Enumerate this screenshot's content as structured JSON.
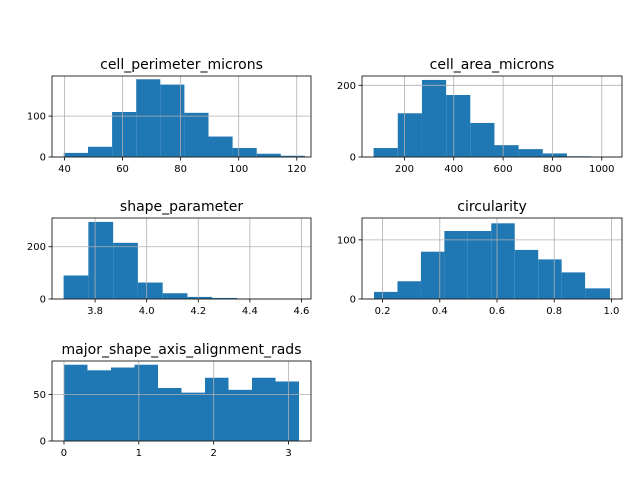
{
  "chart_data": [
    {
      "type": "bar",
      "title": "cell_perimeter_microns",
      "xlabel": "",
      "ylabel": "",
      "xlim": [
        35.7,
        124.9
      ],
      "ylim": [
        0,
        198
      ],
      "bins": [
        {
          "x0": 39.75,
          "x1": 48.1,
          "count": 10
        },
        {
          "x0": 48.1,
          "x1": 56.4,
          "count": 25
        },
        {
          "x0": 56.4,
          "x1": 64.7,
          "count": 110
        },
        {
          "x0": 64.7,
          "x1": 73.0,
          "count": 190
        },
        {
          "x0": 73.0,
          "x1": 81.3,
          "count": 177
        },
        {
          "x0": 81.3,
          "x1": 89.6,
          "count": 108
        },
        {
          "x0": 89.6,
          "x1": 97.9,
          "count": 50
        },
        {
          "x0": 97.9,
          "x1": 106.2,
          "count": 22
        },
        {
          "x0": 106.2,
          "x1": 114.5,
          "count": 8
        },
        {
          "x0": 114.5,
          "x1": 122.8,
          "count": 3
        }
      ],
      "xticks": [
        40,
        60,
        80,
        100,
        120
      ],
      "yticks": [
        0,
        100
      ],
      "grid": true
    },
    {
      "type": "bar",
      "title": "cell_area_microns",
      "xlabel": "",
      "ylabel": "",
      "xlim": [
        28,
        1082
      ],
      "ylim": [
        0,
        226
      ],
      "bins": [
        {
          "x0": 75,
          "x1": 173,
          "count": 25
        },
        {
          "x0": 173,
          "x1": 271,
          "count": 122
        },
        {
          "x0": 271,
          "x1": 369,
          "count": 215
        },
        {
          "x0": 369,
          "x1": 467,
          "count": 173
        },
        {
          "x0": 467,
          "x1": 565,
          "count": 95
        },
        {
          "x0": 565,
          "x1": 663,
          "count": 33
        },
        {
          "x0": 663,
          "x1": 761,
          "count": 22
        },
        {
          "x0": 761,
          "x1": 859,
          "count": 10
        },
        {
          "x0": 859,
          "x1": 957,
          "count": 2
        },
        {
          "x0": 957,
          "x1": 1035,
          "count": 1
        }
      ],
      "xticks": [
        200,
        400,
        600,
        800,
        1000
      ],
      "yticks": [
        0,
        200
      ],
      "grid": true
    },
    {
      "type": "bar",
      "title": "shape_parameter",
      "xlabel": "",
      "ylabel": "",
      "xlim": [
        3.633,
        4.637
      ],
      "ylim": [
        0,
        310
      ],
      "bins": [
        {
          "x0": 3.678,
          "x1": 3.774,
          "count": 90
        },
        {
          "x0": 3.774,
          "x1": 3.87,
          "count": 295
        },
        {
          "x0": 3.87,
          "x1": 3.966,
          "count": 215
        },
        {
          "x0": 3.966,
          "x1": 4.062,
          "count": 63
        },
        {
          "x0": 4.062,
          "x1": 4.158,
          "count": 22
        },
        {
          "x0": 4.158,
          "x1": 4.254,
          "count": 8
        },
        {
          "x0": 4.254,
          "x1": 4.35,
          "count": 4
        },
        {
          "x0": 4.35,
          "x1": 4.446,
          "count": 1
        },
        {
          "x0": 4.446,
          "x1": 4.542,
          "count": 1
        },
        {
          "x0": 4.542,
          "x1": 4.592,
          "count": 1
        }
      ],
      "xticks": [
        3.8,
        4.0,
        4.2,
        4.4,
        4.6
      ],
      "yticks": [
        0,
        200
      ],
      "grid": true
    },
    {
      "type": "bar",
      "title": "circularity",
      "xlabel": "",
      "ylabel": "",
      "xlim": [
        0.128,
        1.037
      ],
      "ylim": [
        0,
        137
      ],
      "bins": [
        {
          "x0": 0.17,
          "x1": 0.252,
          "count": 12
        },
        {
          "x0": 0.252,
          "x1": 0.334,
          "count": 30
        },
        {
          "x0": 0.334,
          "x1": 0.416,
          "count": 80
        },
        {
          "x0": 0.416,
          "x1": 0.498,
          "count": 115
        },
        {
          "x0": 0.498,
          "x1": 0.58,
          "count": 115
        },
        {
          "x0": 0.58,
          "x1": 0.662,
          "count": 128
        },
        {
          "x0": 0.662,
          "x1": 0.744,
          "count": 83
        },
        {
          "x0": 0.744,
          "x1": 0.826,
          "count": 67
        },
        {
          "x0": 0.826,
          "x1": 0.908,
          "count": 45
        },
        {
          "x0": 0.908,
          "x1": 0.995,
          "count": 18
        }
      ],
      "xticks": [
        0.2,
        0.4,
        0.6,
        0.8,
        1.0
      ],
      "yticks": [
        0,
        100
      ],
      "grid": true
    },
    {
      "type": "bar",
      "title": "major_shape_axis_alignment_rads",
      "xlabel": "",
      "ylabel": "",
      "xlim": [
        -0.16,
        3.3
      ],
      "ylim": [
        0,
        86
      ],
      "bins": [
        {
          "x0": 0.0,
          "x1": 0.314,
          "count": 82
        },
        {
          "x0": 0.314,
          "x1": 0.628,
          "count": 76
        },
        {
          "x0": 0.628,
          "x1": 0.942,
          "count": 79
        },
        {
          "x0": 0.942,
          "x1": 1.256,
          "count": 82
        },
        {
          "x0": 1.256,
          "x1": 1.57,
          "count": 57
        },
        {
          "x0": 1.57,
          "x1": 1.884,
          "count": 52
        },
        {
          "x0": 1.884,
          "x1": 2.198,
          "count": 68
        },
        {
          "x0": 2.198,
          "x1": 2.512,
          "count": 55
        },
        {
          "x0": 2.512,
          "x1": 2.826,
          "count": 68
        },
        {
          "x0": 2.826,
          "x1": 3.14,
          "count": 64
        }
      ],
      "xticks": [
        0,
        1,
        2,
        3
      ],
      "yticks": [
        0,
        50
      ],
      "grid": true
    }
  ],
  "colors": {
    "bar": "#1f77b4",
    "grid": "#b0b0b0",
    "axis": "#000000",
    "background": "#ffffff"
  }
}
